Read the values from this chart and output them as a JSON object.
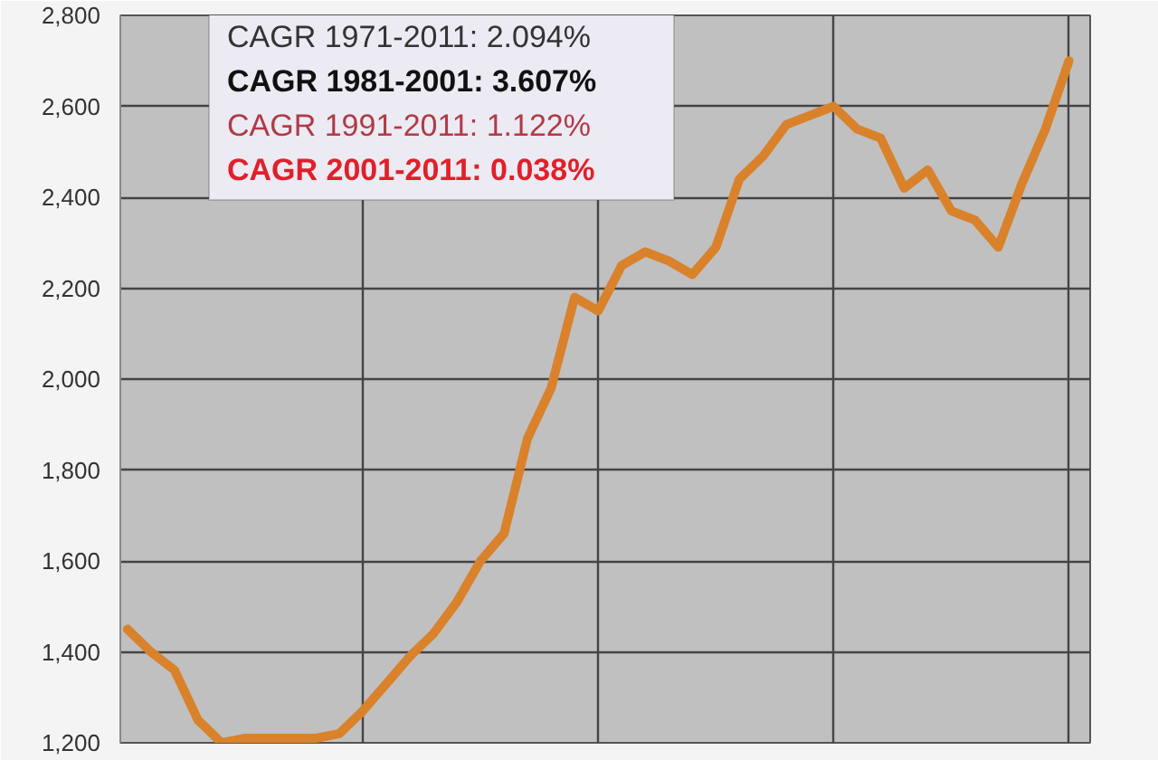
{
  "chart_data": {
    "type": "line",
    "categories": [
      null,
      null,
      null,
      null,
      null,
      null,
      null,
      null,
      null,
      null,
      null,
      null,
      null,
      null,
      null,
      null,
      null,
      null,
      null,
      null,
      null,
      null,
      null,
      null,
      null,
      null,
      null,
      null,
      null,
      null,
      null,
      null,
      null,
      null,
      null,
      null,
      null,
      null,
      null,
      null,
      null
    ],
    "series": [
      {
        "color": "#d9822b",
        "values": [
          1450,
          1400,
          1360,
          1250,
          1200,
          1210,
          1210,
          1210,
          1210,
          1220,
          1270,
          1330,
          1390,
          1440,
          1510,
          1600,
          1660,
          1870,
          1980,
          2180,
          2150,
          2250,
          2280,
          2260,
          2230,
          2290,
          2440,
          2490,
          2560,
          2580,
          2600,
          2550,
          2530,
          2420,
          2460,
          2370,
          2350,
          2290,
          2430,
          2550,
          2700
        ]
      }
    ],
    "ylim": [
      1200,
      2800
    ],
    "yticks": [
      {
        "value": 1200,
        "label": "1,200"
      },
      {
        "value": 1400,
        "label": "1,400"
      },
      {
        "value": 1600,
        "label": "1,600"
      },
      {
        "value": 1800,
        "label": "1,800"
      },
      {
        "value": 2000,
        "label": "2,000"
      },
      {
        "value": 2200,
        "label": "2,200"
      },
      {
        "value": 2400,
        "label": "2,400"
      },
      {
        "value": 2600,
        "label": "2,600"
      },
      {
        "value": 2800,
        "label": "2,800"
      }
    ],
    "tick_labels": "y",
    "grid": true,
    "line_style": "solid",
    "annotations": [
      "CAGR  1971-2011:  2.094%",
      "CAGR  1981-2001:  3.607%",
      "CAGR  1991-2011:  1.122%",
      "CAGR  2001-2011:  0.038%"
    ]
  }
}
